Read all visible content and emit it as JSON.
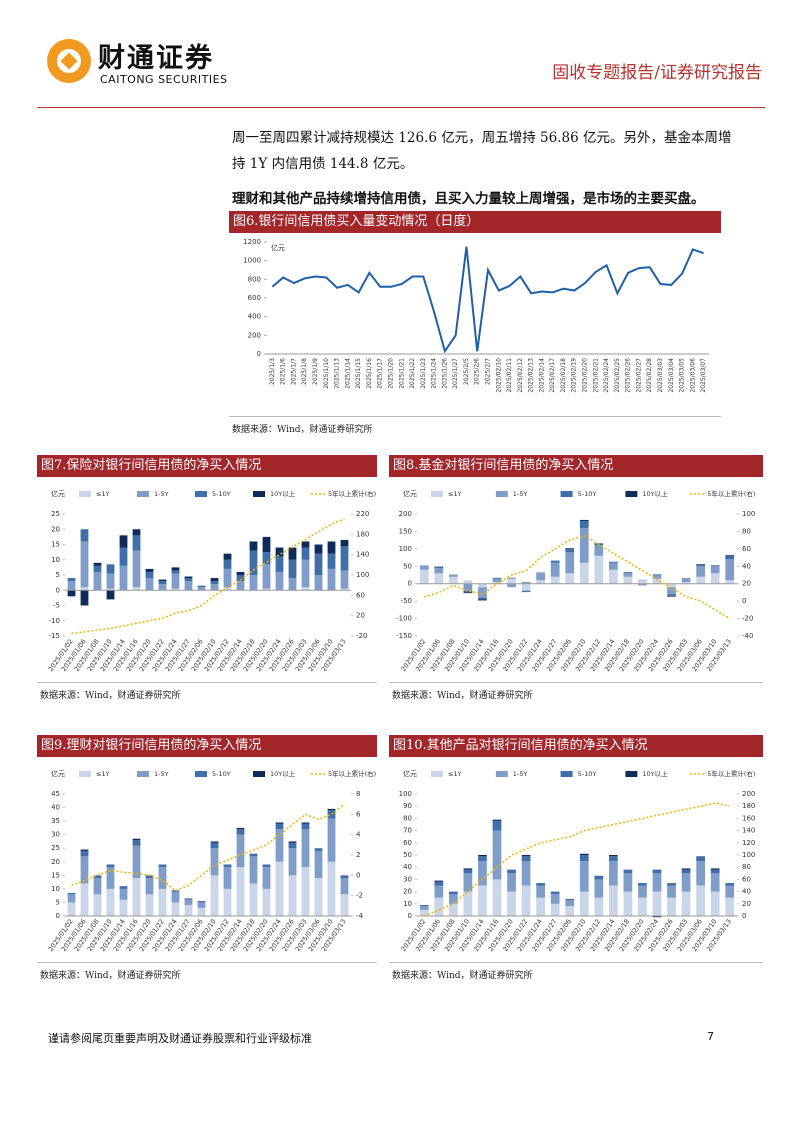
{
  "header": {
    "logo_cn": "财通证券",
    "logo_en": "CAITONG SECURITIES",
    "report_type": "固收专题报告/证券研究报告"
  },
  "body": {
    "lines": [
      "周一至周四累计减持规模达 126.6 亿元，周五增持 56.86 亿元。另外，基金本周增",
      "持 1Y 内信用债 144.8 亿元。"
    ],
    "bold": "理财和其他产品持续增持信用债，且买入力量较上周增强，是市场的主要买盘。"
  },
  "chart_data": [
    {
      "type": "line",
      "title": "图6.银行间信用债买入量变动情况（日度）",
      "unit": "亿元",
      "source": "数据来源：Wind，财通证券研究所",
      "color": "#1f5fa8",
      "categories": [
        "2025/1/3",
        "2025/1/6",
        "2025/1/7",
        "2025/1/8",
        "2025/1/9",
        "2025/1/10",
        "2025/1/13",
        "2025/1/14",
        "2025/1/15",
        "2025/1/16",
        "2025/1/17",
        "2025/1/20",
        "2025/1/21",
        "2025/1/22",
        "2025/1/23",
        "2025/1/24",
        "2025/1/26",
        "2025/1/27",
        "2025/2/5",
        "2025/2/6",
        "2025/2/7",
        "2025/02/10",
        "2025/02/11",
        "2025/02/12",
        "2025/02/13",
        "2025/02/14",
        "2025/02/17",
        "2025/02/18",
        "2025/02/19",
        "2025/02/20",
        "2025/02/21",
        "2025/02/24",
        "2025/02/25",
        "2025/02/26",
        "2025/02/27",
        "2025/02/28",
        "2025/03/03",
        "2025/03/04",
        "2025/03/05",
        "2025/03/06",
        "2025/03/07"
      ],
      "values": [
        720,
        820,
        760,
        810,
        830,
        820,
        710,
        740,
        660,
        870,
        720,
        720,
        750,
        830,
        830,
        450,
        30,
        200,
        1150,
        30,
        900,
        680,
        730,
        830,
        650,
        670,
        660,
        700,
        680,
        760,
        880,
        950,
        650,
        870,
        920,
        930,
        750,
        740,
        860,
        1120,
        1080
      ],
      "ylim": [
        0,
        1200
      ],
      "yticks": [
        0,
        200,
        400,
        600,
        800,
        1000,
        1200
      ]
    },
    {
      "type": "combo",
      "title": "图7.保险对银行间信用债的净买入情况",
      "unit": "亿元",
      "source": "数据来源：Wind，财通证券研究所",
      "categories": [
        "2025/01/02",
        "2025/01/06",
        "2025/01/08",
        "2025/01/10",
        "2025/01/14",
        "2025/01/16",
        "2025/01/20",
        "2025/01/22",
        "2025/01/24",
        "2025/01/27",
        "2025/02/06",
        "2025/02/10",
        "2025/02/12",
        "2025/02/14",
        "2025/02/18",
        "2025/02/20",
        "2025/02/24",
        "2025/02/26",
        "2025/03/03",
        "2025/03/06",
        "2025/03/10",
        "2025/03/13"
      ],
      "series": [
        {
          "name": "≤1Y",
          "type": "bar",
          "color": "#c9d5e8",
          "values": [
            0,
            1,
            0,
            0.5,
            0,
            1,
            0,
            0,
            0.5,
            0,
            0,
            0,
            1,
            0,
            0,
            0.5,
            0,
            0,
            1,
            0,
            0,
            0.5
          ]
        },
        {
          "name": "1-5Y",
          "type": "bar",
          "color": "#7f9dc8",
          "values": [
            3,
            15,
            6,
            5,
            8,
            12,
            4,
            2,
            5,
            3,
            1,
            2,
            6,
            3,
            5,
            8,
            6,
            4,
            9,
            5,
            7,
            6
          ]
        },
        {
          "name": "5-10Y",
          "type": "bar",
          "color": "#3f6ea8",
          "values": [
            1,
            4,
            2,
            3,
            6,
            5,
            2,
            1,
            1,
            1,
            0.5,
            1,
            3,
            2,
            8,
            4,
            5,
            6,
            4,
            7,
            5,
            8
          ]
        },
        {
          "name": "10Y以上",
          "type": "bar",
          "color": "#0f2b5c",
          "values": [
            -2,
            -5,
            1,
            -3,
            4,
            2,
            1,
            0.5,
            1,
            0.5,
            0,
            1,
            2,
            1,
            3,
            5,
            3,
            4,
            2,
            3,
            4,
            2
          ]
        },
        {
          "name": "5年以上累计(右)",
          "type": "line",
          "axis": "y2",
          "color": "#f2b200",
          "values": [
            -15,
            -12,
            -8,
            -5,
            0,
            5,
            10,
            15,
            25,
            30,
            40,
            60,
            75,
            90,
            110,
            125,
            140,
            155,
            170,
            185,
            200,
            210
          ]
        }
      ],
      "ylim": [
        -15,
        25
      ],
      "yticks": [
        -15,
        -10,
        -5,
        0,
        5,
        10,
        15,
        20,
        25
      ],
      "y2lim": [
        -20,
        220
      ],
      "y2ticks": [
        -20,
        20,
        60,
        100,
        140,
        180,
        220
      ]
    },
    {
      "type": "combo",
      "title": "图8.基金对银行间信用债的净买入情况",
      "unit": "亿元",
      "source": "数据来源：Wind，财通证券研究所",
      "categories": [
        "2025/01/02",
        "2025/01/06",
        "2025/01/08",
        "2025/01/10",
        "2025/01/14",
        "2025/01/16",
        "2025/01/20",
        "2025/01/22",
        "2025/01/24",
        "2025/01/27",
        "2025/02/06",
        "2025/02/10",
        "2025/02/12",
        "2025/02/14",
        "2025/02/18",
        "2025/02/20",
        "2025/02/24",
        "2025/02/26",
        "2025/03/03",
        "2025/03/06",
        "2025/03/10",
        "2025/03/13"
      ],
      "series": [
        {
          "name": "≤1Y",
          "type": "bar",
          "color": "#c9d5e8",
          "values": [
            40,
            30,
            20,
            10,
            -10,
            5,
            15,
            -20,
            10,
            20,
            30,
            60,
            80,
            40,
            20,
            10,
            15,
            -10,
            5,
            20,
            30,
            10
          ]
        },
        {
          "name": "1-5Y",
          "type": "bar",
          "color": "#7f9dc8",
          "values": [
            10,
            15,
            5,
            -20,
            -30,
            10,
            -10,
            5,
            20,
            40,
            60,
            100,
            30,
            20,
            10,
            -5,
            10,
            -20,
            10,
            30,
            20,
            60
          ]
        },
        {
          "name": "5-10Y",
          "type": "bar",
          "color": "#3f6ea8",
          "values": [
            2,
            3,
            1,
            -5,
            -5,
            2,
            1,
            -3,
            2,
            5,
            10,
            20,
            5,
            3,
            2,
            1,
            2,
            -5,
            1,
            5,
            3,
            10
          ]
        },
        {
          "name": "10Y以上",
          "type": "bar",
          "color": "#0f2b5c",
          "values": [
            0,
            1,
            0,
            -2,
            -3,
            0,
            1,
            -1,
            0,
            1,
            2,
            3,
            1,
            0,
            1,
            0,
            0,
            -2,
            0,
            1,
            0,
            2
          ]
        },
        {
          "name": "5年以上累计(右)",
          "type": "line",
          "axis": "y2",
          "color": "#f2b200",
          "values": [
            5,
            10,
            18,
            12,
            8,
            20,
            30,
            35,
            50,
            60,
            70,
            75,
            65,
            55,
            45,
            35,
            25,
            15,
            5,
            0,
            -10,
            -20
          ]
        }
      ],
      "ylim": [
        -150,
        200
      ],
      "yticks": [
        -150,
        -100,
        -50,
        0,
        50,
        100,
        150,
        200
      ],
      "y2lim": [
        -40,
        100
      ],
      "y2ticks": [
        -40,
        -20,
        0,
        20,
        40,
        60,
        80,
        100
      ]
    },
    {
      "type": "combo",
      "title": "图9.理财对银行间信用债的净买入情况",
      "unit": "亿元",
      "source": "数据来源：Wind，财通证券研究所",
      "categories": [
        "2025/01/02",
        "2025/01/06",
        "2025/01/08",
        "2025/01/10",
        "2025/01/14",
        "2025/01/16",
        "2025/01/20",
        "2025/01/22",
        "2025/01/24",
        "2025/01/27",
        "2025/02/06",
        "2025/02/10",
        "2025/02/12",
        "2025/02/14",
        "2025/02/18",
        "2025/02/20",
        "2025/02/24",
        "2025/02/26",
        "2025/03/03",
        "2025/03/06",
        "2025/03/10",
        "2025/03/13"
      ],
      "series": [
        {
          "name": "≤1Y",
          "type": "bar",
          "color": "#c9d5e8",
          "values": [
            5,
            12,
            8,
            10,
            6,
            14,
            8,
            10,
            5,
            4,
            3,
            15,
            10,
            18,
            12,
            10,
            20,
            15,
            18,
            14,
            20,
            8
          ]
        },
        {
          "name": "1-5Y",
          "type": "bar",
          "color": "#7f9dc8",
          "values": [
            3,
            10,
            6,
            8,
            4,
            12,
            6,
            8,
            4,
            2,
            2,
            10,
            8,
            12,
            10,
            8,
            12,
            10,
            14,
            10,
            16,
            6
          ]
        },
        {
          "name": "5-10Y",
          "type": "bar",
          "color": "#3f6ea8",
          "values": [
            0.5,
            2,
            1,
            1,
            1,
            2,
            1,
            1,
            0.5,
            0.5,
            0.5,
            2,
            1,
            2,
            1,
            1,
            2,
            2,
            2,
            1,
            3,
            1
          ]
        },
        {
          "name": "10Y以上",
          "type": "bar",
          "color": "#0f2b5c",
          "values": [
            0,
            0.5,
            0,
            0,
            0,
            0.5,
            0,
            0,
            0,
            0,
            0,
            0.5,
            0,
            0.5,
            0,
            0,
            0.5,
            0.5,
            0.5,
            0,
            0.5,
            0
          ]
        },
        {
          "name": "5年以上累计(右)",
          "type": "line",
          "axis": "y2",
          "color": "#f2b200",
          "values": [
            -1,
            -0.5,
            0,
            0.5,
            0.3,
            0.2,
            0,
            -0.5,
            -1.5,
            -1,
            0,
            1,
            1.5,
            2,
            2.5,
            3,
            4,
            5,
            6,
            5.5,
            6,
            7
          ]
        }
      ],
      "ylim": [
        0,
        45
      ],
      "yticks": [
        0,
        5,
        10,
        15,
        20,
        25,
        30,
        35,
        40,
        45
      ],
      "y2lim": [
        -4,
        8
      ],
      "y2ticks": [
        -4,
        -2,
        0,
        2,
        4,
        6,
        8
      ]
    },
    {
      "type": "combo",
      "title": "图10.其他产品对银行间信用债的净买入情况",
      "unit": "亿元",
      "source": "数据来源：Wind，财通证券研究所",
      "categories": [
        "2025/01/02",
        "2025/01/06",
        "2025/01/08",
        "2025/01/10",
        "2025/01/14",
        "2025/01/16",
        "2025/01/20",
        "2025/01/22",
        "2025/01/24",
        "2025/01/27",
        "2025/02/06",
        "2025/02/10",
        "2025/02/12",
        "2025/02/14",
        "2025/02/18",
        "2025/02/20",
        "2025/02/24",
        "2025/02/26",
        "2025/03/03",
        "2025/03/06",
        "2025/03/10",
        "2025/03/13"
      ],
      "series": [
        {
          "name": "≤1Y",
          "type": "bar",
          "color": "#c9d5e8",
          "values": [
            5,
            15,
            10,
            20,
            25,
            30,
            20,
            25,
            15,
            10,
            8,
            20,
            15,
            25,
            20,
            15,
            20,
            15,
            20,
            25,
            20,
            15
          ]
        },
        {
          "name": "1-5Y",
          "type": "bar",
          "color": "#7f9dc8",
          "values": [
            3,
            10,
            8,
            15,
            20,
            40,
            15,
            20,
            10,
            8,
            5,
            25,
            15,
            20,
            15,
            10,
            15,
            10,
            15,
            20,
            15,
            10
          ]
        },
        {
          "name": "5-10Y",
          "type": "bar",
          "color": "#3f6ea8",
          "values": [
            1,
            3,
            2,
            3,
            4,
            8,
            3,
            4,
            2,
            2,
            1,
            5,
            3,
            4,
            3,
            2,
            3,
            2,
            3,
            4,
            3,
            2
          ]
        },
        {
          "name": "10Y以上",
          "type": "bar",
          "color": "#0f2b5c",
          "values": [
            0,
            1,
            0,
            1,
            1,
            1,
            0,
            1,
            0,
            0,
            0,
            1,
            0,
            1,
            0,
            0,
            -1,
            0,
            1,
            0,
            1,
            0
          ]
        },
        {
          "name": "5年以上累计(右)",
          "type": "line",
          "axis": "y2",
          "color": "#f2b200",
          "values": [
            0,
            10,
            20,
            40,
            60,
            80,
            100,
            110,
            120,
            125,
            130,
            140,
            145,
            150,
            155,
            160,
            165,
            170,
            175,
            180,
            185,
            180
          ]
        }
      ],
      "ylim": [
        0,
        100
      ],
      "yticks": [
        0,
        10,
        20,
        30,
        40,
        50,
        60,
        70,
        80,
        90,
        100
      ],
      "y2lim": [
        0,
        200
      ],
      "y2ticks": [
        0,
        20,
        40,
        60,
        80,
        100,
        120,
        140,
        160,
        180,
        200
      ]
    }
  ],
  "footer": {
    "disclaimer": "谨请参阅尾页重要声明及财通证券股票和行业评级标准",
    "page": "7"
  }
}
